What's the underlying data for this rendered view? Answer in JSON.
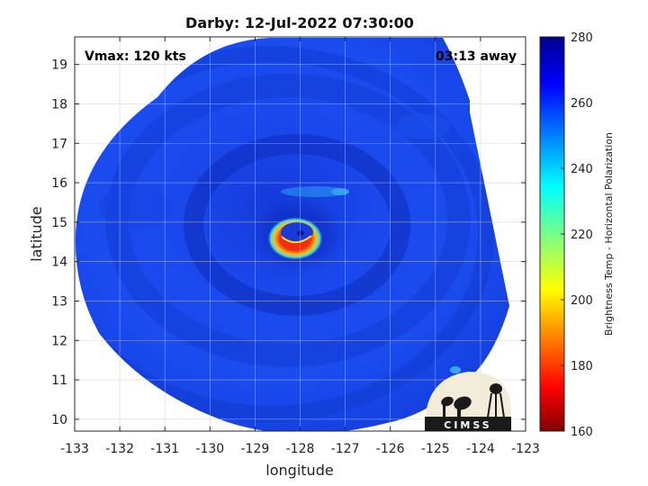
{
  "chart_data": {
    "type": "heatmap",
    "title": "Darby: 12-Jul-2022 07:30:00",
    "xlabel": "longitude",
    "ylabel": "latitude",
    "xlim": [
      -133,
      -123
    ],
    "ylim": [
      9.7,
      19.7
    ],
    "x_ticks": [
      -133,
      -132,
      -131,
      -130,
      -129,
      -128,
      -127,
      -126,
      -125,
      -124,
      -123
    ],
    "y_ticks": [
      10,
      11,
      12,
      13,
      14,
      15,
      16,
      17,
      18,
      19
    ],
    "x_tick_labels": [
      "-133",
      "-132",
      "-131",
      "-130",
      "-129",
      "-128",
      "-127",
      "-126",
      "-125",
      "-124",
      "-123"
    ],
    "y_tick_labels": [
      "10",
      "11",
      "12",
      "13",
      "14",
      "15",
      "16",
      "17",
      "18",
      "19"
    ],
    "grid": true,
    "storm_center": {
      "lon": -127.8,
      "lat": 14.7
    },
    "colorbar": {
      "label": "Brightness Temp - Horizontal Polarization",
      "range": [
        160,
        280
      ],
      "ticks": [
        160,
        180,
        200,
        220,
        240,
        260,
        280
      ],
      "tick_labels": [
        "160",
        "180",
        "200",
        "220",
        "240",
        "260",
        "280"
      ],
      "colormap": "jet"
    },
    "annotations": {
      "vmax": "Vmax: 120 kts",
      "time_away": "03:13 away"
    }
  },
  "logo": {
    "text": "CIMSS"
  },
  "colors": {
    "field_dark": "#1030c0",
    "field_mid": "#1848e8",
    "eyewall_red": "#e81810",
    "eye_yellow": "#f0e020",
    "eye_cyan": "#20d0e0"
  }
}
